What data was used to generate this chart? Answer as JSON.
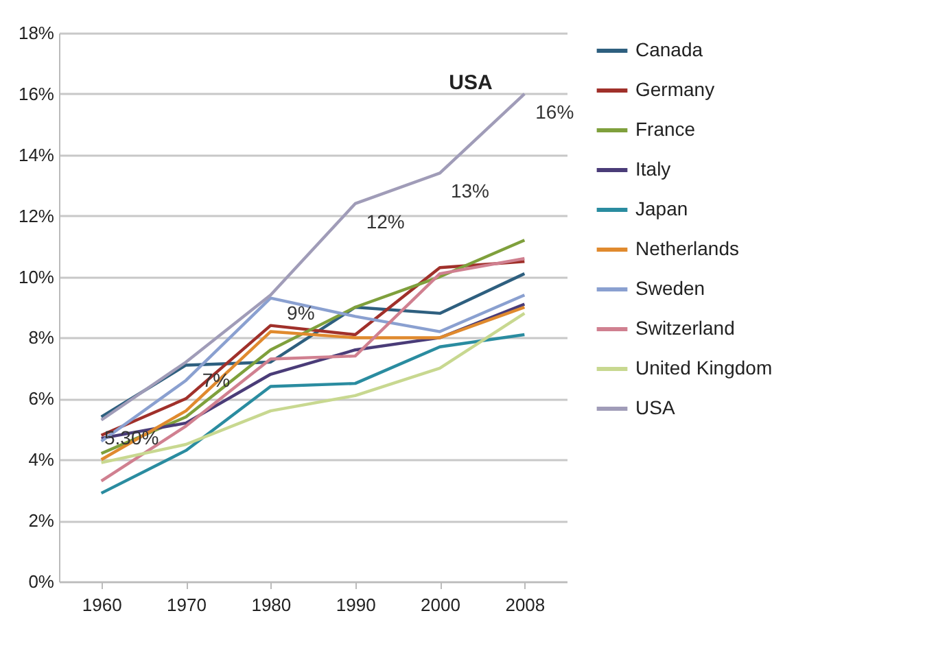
{
  "chart_data": {
    "type": "line",
    "categories": [
      "1960",
      "1970",
      "1980",
      "1990",
      "2000",
      "2008"
    ],
    "ylim": [
      0,
      18
    ],
    "yticks": [
      {
        "value": 0,
        "label": "0%"
      },
      {
        "value": 2,
        "label": "2%"
      },
      {
        "value": 4,
        "label": "4%"
      },
      {
        "value": 6,
        "label": "6%"
      },
      {
        "value": 8,
        "label": "8%"
      },
      {
        "value": 10,
        "label": "10%"
      },
      {
        "value": 12,
        "label": "12%"
      },
      {
        "value": 14,
        "label": "14%"
      },
      {
        "value": 16,
        "label": "16%"
      },
      {
        "value": 18,
        "label": "18%"
      }
    ],
    "grid": "y",
    "legend": "right",
    "marker": "none",
    "annotations": [
      "USA"
    ],
    "series": [
      {
        "name": "Canada",
        "color": "#2e5f7f",
        "values": [
          5.4,
          7.1,
          7.2,
          9.0,
          8.8,
          10.1
        ]
      },
      {
        "name": "Germany",
        "color": "#a0302a",
        "values": [
          4.8,
          6.0,
          8.4,
          8.1,
          10.3,
          10.5
        ]
      },
      {
        "name": "France",
        "color": "#7fa03c",
        "values": [
          4.2,
          5.4,
          7.6,
          9.0,
          10.0,
          11.2
        ]
      },
      {
        "name": "Italy",
        "color": "#4a3c78",
        "values": [
          4.7,
          5.2,
          6.8,
          7.6,
          8.0,
          9.1
        ]
      },
      {
        "name": "Japan",
        "color": "#2a8ca0",
        "values": [
          2.9,
          4.3,
          6.4,
          6.5,
          7.7,
          8.1
        ]
      },
      {
        "name": "Netherlands",
        "color": "#e08a2e",
        "values": [
          4.0,
          5.6,
          8.2,
          8.0,
          8.0,
          9.0
        ]
      },
      {
        "name": "Sweden",
        "color": "#8aa0d0",
        "values": [
          4.6,
          6.6,
          9.3,
          8.7,
          8.2,
          9.4
        ]
      },
      {
        "name": "Switzerland",
        "color": "#d08090",
        "values": [
          3.3,
          5.1,
          7.3,
          7.4,
          10.1,
          10.6
        ]
      },
      {
        "name": "United Kingdom",
        "color": "#c8d890",
        "values": [
          3.9,
          4.5,
          5.6,
          6.1,
          7.0,
          8.8
        ]
      },
      {
        "name": "USA",
        "color": "#a09cb8",
        "values": [
          5.3,
          7.2,
          9.4,
          12.4,
          13.4,
          16.0
        ],
        "value_labels": [
          "5.30%",
          "7%",
          "9%",
          "12%",
          "13%",
          "16%"
        ]
      }
    ]
  }
}
